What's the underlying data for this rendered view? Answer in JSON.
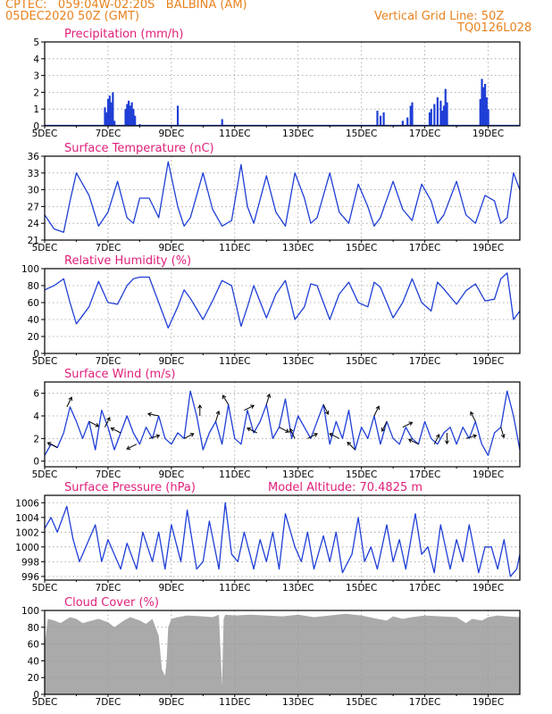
{
  "header": {
    "line1": "CPTEC:   059:04W-02:20S   BALBINA (AM)",
    "line2": "05DEC2020 50Z (GMT)",
    "right1": "Vertical Grid Line: 50Z",
    "right2": "TQ0126L028"
  },
  "colors": {
    "header": "#e8821e",
    "title": "#e0207a",
    "series": "#1f3fd6",
    "cloud": "#aaaaaa",
    "grid": "#999999"
  },
  "x_axis": {
    "tick_labels": [
      "5DEC",
      "7DEC",
      "9DEC",
      "11DEC",
      "13DEC",
      "15DEC",
      "17DEC",
      "19DEC"
    ],
    "range_days": [
      5,
      20
    ]
  },
  "chart_data": [
    {
      "id": "precipitation",
      "type": "bar",
      "title": "Precipitation (mm/h)",
      "yticks": [
        "0",
        "1",
        "2",
        "3",
        "4",
        "5"
      ],
      "ylim": [
        0,
        5
      ],
      "x": [
        6.9,
        6.95,
        7.0,
        7.05,
        7.1,
        7.15,
        7.2,
        7.55,
        7.6,
        7.65,
        7.7,
        7.75,
        7.8,
        7.85,
        8.0,
        8.05,
        9.2,
        10.6,
        15.5,
        15.6,
        15.7,
        16.3,
        16.45,
        16.55,
        16.6,
        17.15,
        17.2,
        17.3,
        17.4,
        17.5,
        17.55,
        17.6,
        17.65,
        17.7,
        18.75,
        18.8,
        18.85,
        18.9,
        18.95,
        19.0
      ],
      "values": [
        1.1,
        0.8,
        1.6,
        1.8,
        1.4,
        2.0,
        0.3,
        1.0,
        1.3,
        1.5,
        1.2,
        1.4,
        1.0,
        0.6,
        0.1,
        0.05,
        1.2,
        0.4,
        0.9,
        0.6,
        0.8,
        0.3,
        0.5,
        1.2,
        1.4,
        0.8,
        1.0,
        1.3,
        1.7,
        1.5,
        0.9,
        1.2,
        2.2,
        1.4,
        1.6,
        2.8,
        2.3,
        2.5,
        1.7,
        1.0
      ]
    },
    {
      "id": "temperature",
      "type": "line",
      "title": "Surface Temperature (nC)",
      "yticks": [
        "21",
        "24",
        "27",
        "30",
        "33",
        "36"
      ],
      "ylim": [
        21,
        36
      ],
      "x": [
        5.0,
        5.3,
        5.6,
        5.8,
        6.0,
        6.4,
        6.7,
        7.0,
        7.3,
        7.6,
        7.8,
        8.0,
        8.3,
        8.6,
        8.9,
        9.2,
        9.4,
        9.6,
        10.0,
        10.3,
        10.6,
        10.9,
        11.2,
        11.4,
        11.6,
        12.0,
        12.3,
        12.6,
        12.9,
        13.2,
        13.4,
        13.6,
        14.0,
        14.3,
        14.6,
        14.9,
        15.2,
        15.4,
        15.6,
        16.0,
        16.3,
        16.6,
        16.9,
        17.2,
        17.4,
        17.6,
        18.0,
        18.3,
        18.6,
        18.9,
        19.2,
        19.4,
        19.6,
        19.8,
        20.0
      ],
      "values": [
        25.5,
        23.0,
        22.4,
        28.0,
        33.0,
        29.0,
        23.5,
        26.0,
        31.5,
        25.0,
        24.0,
        28.5,
        28.5,
        25.0,
        35.0,
        27.0,
        23.5,
        25.0,
        33.0,
        26.5,
        23.5,
        24.5,
        34.5,
        27.0,
        24.0,
        32.5,
        26.0,
        23.5,
        33.0,
        28.5,
        24.0,
        25.0,
        33.0,
        26.0,
        24.0,
        31.0,
        27.0,
        23.5,
        25.0,
        31.5,
        26.5,
        24.5,
        31.0,
        28.0,
        24.0,
        25.5,
        31.5,
        25.5,
        24.0,
        29.0,
        28.0,
        24.0,
        25.0,
        33.0,
        30.0
      ]
    },
    {
      "id": "humidity",
      "type": "line",
      "title": "Relative Humidity (%)",
      "yticks": [
        "0",
        "20",
        "40",
        "60",
        "80",
        "100"
      ],
      "ylim": [
        0,
        100
      ],
      "x": [
        5.0,
        5.3,
        5.6,
        5.8,
        6.0,
        6.4,
        6.7,
        7.0,
        7.3,
        7.6,
        7.8,
        8.0,
        8.3,
        8.6,
        8.9,
        9.2,
        9.4,
        9.6,
        10.0,
        10.3,
        10.6,
        10.9,
        11.2,
        11.4,
        11.6,
        12.0,
        12.3,
        12.6,
        12.9,
        13.2,
        13.4,
        13.6,
        14.0,
        14.3,
        14.6,
        14.9,
        15.2,
        15.4,
        15.6,
        16.0,
        16.3,
        16.6,
        16.9,
        17.2,
        17.4,
        17.6,
        18.0,
        18.3,
        18.6,
        18.9,
        19.2,
        19.4,
        19.6,
        19.8,
        20.0
      ],
      "values": [
        75,
        80,
        88,
        60,
        35,
        55,
        85,
        60,
        58,
        80,
        88,
        90,
        90,
        60,
        30,
        55,
        75,
        65,
        40,
        62,
        86,
        80,
        32,
        55,
        80,
        42,
        70,
        86,
        40,
        55,
        82,
        80,
        40,
        70,
        84,
        60,
        55,
        84,
        78,
        42,
        60,
        88,
        60,
        50,
        84,
        76,
        58,
        74,
        82,
        62,
        64,
        88,
        95,
        40,
        50
      ]
    },
    {
      "id": "wind",
      "type": "line",
      "title": "Surface Wind (m/s)",
      "yticks": [
        "0",
        "2",
        "4",
        "6"
      ],
      "ylim": [
        -0.5,
        7
      ],
      "x": [
        5.0,
        5.2,
        5.4,
        5.6,
        5.8,
        6.0,
        6.2,
        6.4,
        6.6,
        6.8,
        7.0,
        7.2,
        7.4,
        7.6,
        7.8,
        8.0,
        8.2,
        8.4,
        8.6,
        8.8,
        9.0,
        9.2,
        9.4,
        9.6,
        9.8,
        10.0,
        10.2,
        10.4,
        10.6,
        10.8,
        11.0,
        11.2,
        11.4,
        11.6,
        11.8,
        12.0,
        12.2,
        12.4,
        12.6,
        12.8,
        13.0,
        13.2,
        13.4,
        13.6,
        13.8,
        14.0,
        14.2,
        14.4,
        14.6,
        14.8,
        15.0,
        15.2,
        15.4,
        15.6,
        15.8,
        16.0,
        16.2,
        16.4,
        16.6,
        16.8,
        17.0,
        17.2,
        17.4,
        17.6,
        17.8,
        18.0,
        18.2,
        18.4,
        18.6,
        18.8,
        19.0,
        19.2,
        19.4,
        19.6,
        19.8,
        20.0
      ],
      "values": [
        0.5,
        1.5,
        1.2,
        2.5,
        4.8,
        3.5,
        2.0,
        3.5,
        1.0,
        4.5,
        3.0,
        1.0,
        2.5,
        4.0,
        2.5,
        1.5,
        3.0,
        2.0,
        4.0,
        2.0,
        1.5,
        2.5,
        2.0,
        6.2,
        4.0,
        1.0,
        2.5,
        3.5,
        1.5,
        5.0,
        2.0,
        1.5,
        4.5,
        2.5,
        3.5,
        5.0,
        2.0,
        3.0,
        5.5,
        2.0,
        4.0,
        3.0,
        2.0,
        3.5,
        5.0,
        1.5,
        3.5,
        2.0,
        4.5,
        1.0,
        3.0,
        2.0,
        4.0,
        1.5,
        3.5,
        2.0,
        1.5,
        3.0,
        2.0,
        1.5,
        3.5,
        2.0,
        1.5,
        2.5,
        3.0,
        1.5,
        3.0,
        2.0,
        3.5,
        1.5,
        0.5,
        2.5,
        3.0,
        6.2,
        4.0,
        1.0
      ]
    },
    {
      "id": "pressure",
      "type": "line",
      "title": "Surface Pressure (hPa)",
      "yticks": [
        "996",
        "998",
        "1000",
        "1002",
        "1004",
        "1006"
      ],
      "ylim": [
        995.5,
        1007
      ],
      "x": [
        5.0,
        5.2,
        5.4,
        5.7,
        5.9,
        6.1,
        6.3,
        6.6,
        6.8,
        7.0,
        7.2,
        7.4,
        7.6,
        7.9,
        8.1,
        8.4,
        8.6,
        8.8,
        9.0,
        9.3,
        9.5,
        9.8,
        10.0,
        10.2,
        10.5,
        10.7,
        10.9,
        11.1,
        11.3,
        11.6,
        11.8,
        12.0,
        12.2,
        12.4,
        12.6,
        12.9,
        13.1,
        13.3,
        13.5,
        13.8,
        14.0,
        14.2,
        14.4,
        14.7,
        14.9,
        15.1,
        15.3,
        15.5,
        15.8,
        16.0,
        16.2,
        16.4,
        16.7,
        16.9,
        17.1,
        17.3,
        17.5,
        17.8,
        18.0,
        18.2,
        18.4,
        18.7,
        18.9,
        19.1,
        19.3,
        19.5,
        19.7,
        19.9,
        20.0
      ],
      "values": [
        1002.5,
        1004,
        1002,
        1005.5,
        1001,
        998,
        1000,
        1003,
        998,
        1001,
        999,
        997,
        1000.5,
        997,
        1002,
        998,
        1002,
        997,
        1003,
        998,
        1005,
        997,
        998,
        1003.5,
        997,
        1006,
        999,
        998,
        1002,
        997,
        1001,
        998,
        1002,
        997,
        1004.5,
        1000,
        998,
        1002,
        997,
        1001.5,
        998,
        1002,
        996.5,
        999,
        1004,
        998,
        1000,
        997,
        1003,
        998,
        1001,
        997,
        1004.5,
        999,
        1000,
        996.5,
        1003,
        997,
        1001,
        998,
        1003,
        996.5,
        1000,
        1000,
        997,
        1001,
        996,
        997,
        999
      ]
    },
    {
      "id": "cloud",
      "type": "area",
      "title": "Cloud Cover (%)",
      "yticks": [
        "0",
        "20",
        "40",
        "60",
        "80",
        "100"
      ],
      "ylim": [
        0,
        100
      ],
      "x": [
        5.0,
        5.1,
        5.3,
        5.5,
        5.8,
        6.0,
        6.2,
        6.5,
        6.7,
        7.0,
        7.2,
        7.5,
        7.7,
        8.0,
        8.2,
        8.4,
        8.6,
        8.7,
        8.8,
        8.85,
        8.9,
        9.0,
        9.2,
        9.5,
        10.0,
        10.3,
        10.5,
        10.6,
        10.65,
        10.7,
        11.0,
        11.5,
        12.0,
        12.5,
        13.0,
        13.5,
        14.0,
        14.5,
        15.0,
        15.5,
        15.8,
        16.0,
        16.3,
        16.6,
        17.0,
        17.5,
        18.0,
        18.3,
        18.5,
        18.8,
        19.0,
        19.3,
        19.6,
        20.0
      ],
      "values": [
        60,
        90,
        88,
        85,
        92,
        90,
        85,
        88,
        90,
        86,
        80,
        88,
        92,
        88,
        84,
        90,
        70,
        30,
        22,
        40,
        80,
        90,
        92,
        94,
        93,
        92,
        95,
        10,
        90,
        95,
        94,
        95,
        94,
        93,
        95,
        92,
        94,
        96,
        94,
        90,
        88,
        93,
        90,
        92,
        94,
        93,
        92,
        85,
        90,
        88,
        92,
        94,
        93,
        92
      ]
    }
  ],
  "wind_arrows": {
    "x": [
      5.4,
      5.7,
      6.4,
      6.9,
      7.4,
      7.9,
      8.3,
      8.6,
      9.4,
      9.9,
      10.4,
      10.8,
      11.3,
      11.7,
      12.0,
      12.4,
      12.9,
      13.3,
      13.8,
      14.3,
      14.8,
      15.4,
      15.8,
      16.3,
      16.8,
      17.3,
      17.7,
      18.3,
      18.6,
      19.4
    ],
    "u": [
      -1,
      0.5,
      1,
      0.5,
      -1,
      -1,
      1,
      -1,
      1,
      0,
      0.3,
      -0.3,
      1,
      -1,
      0.3,
      1,
      -0.5,
      1,
      0.5,
      -1,
      -1,
      0.5,
      -0.5,
      1,
      -1,
      0.5,
      0,
      1,
      -0.5,
      0.3
    ],
    "v": [
      0.5,
      1,
      -0.5,
      1,
      0.5,
      -0.5,
      0.3,
      0.2,
      0.5,
      1,
      1,
      0.5,
      0.5,
      0.5,
      1,
      -0.5,
      1,
      0.5,
      -1,
      0.5,
      1,
      1,
      -1,
      0.5,
      0.5,
      1,
      -1,
      0.3,
      1,
      -1
    ]
  },
  "model_altitude": "Model Altitude: 70.4825 m"
}
